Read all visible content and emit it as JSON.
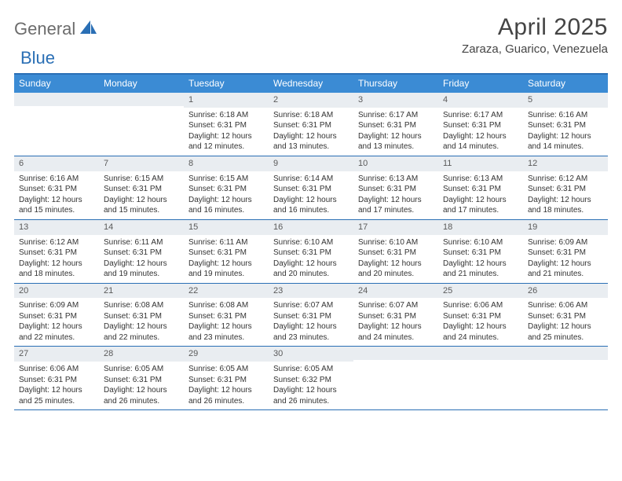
{
  "logo": {
    "part1": "General",
    "part2": "Blue"
  },
  "title": "April 2025",
  "location": "Zaraza, Guarico, Venezuela",
  "colors": {
    "header_bar": "#3b8bd4",
    "top_rule": "#2a6fb5",
    "row_rule": "#2a6fb5",
    "daynum_bg": "#e9edf1",
    "text": "#333333",
    "logo_gray": "#6c6c6c",
    "logo_blue": "#2a6fb5",
    "background": "#ffffff"
  },
  "day_names": [
    "Sunday",
    "Monday",
    "Tuesday",
    "Wednesday",
    "Thursday",
    "Friday",
    "Saturday"
  ],
  "weeks": [
    [
      {
        "num": "",
        "sunrise": "",
        "sunset": "",
        "daylight": ""
      },
      {
        "num": "",
        "sunrise": "",
        "sunset": "",
        "daylight": ""
      },
      {
        "num": "1",
        "sunrise": "Sunrise: 6:18 AM",
        "sunset": "Sunset: 6:31 PM",
        "daylight": "Daylight: 12 hours and 12 minutes."
      },
      {
        "num": "2",
        "sunrise": "Sunrise: 6:18 AM",
        "sunset": "Sunset: 6:31 PM",
        "daylight": "Daylight: 12 hours and 13 minutes."
      },
      {
        "num": "3",
        "sunrise": "Sunrise: 6:17 AM",
        "sunset": "Sunset: 6:31 PM",
        "daylight": "Daylight: 12 hours and 13 minutes."
      },
      {
        "num": "4",
        "sunrise": "Sunrise: 6:17 AM",
        "sunset": "Sunset: 6:31 PM",
        "daylight": "Daylight: 12 hours and 14 minutes."
      },
      {
        "num": "5",
        "sunrise": "Sunrise: 6:16 AM",
        "sunset": "Sunset: 6:31 PM",
        "daylight": "Daylight: 12 hours and 14 minutes."
      }
    ],
    [
      {
        "num": "6",
        "sunrise": "Sunrise: 6:16 AM",
        "sunset": "Sunset: 6:31 PM",
        "daylight": "Daylight: 12 hours and 15 minutes."
      },
      {
        "num": "7",
        "sunrise": "Sunrise: 6:15 AM",
        "sunset": "Sunset: 6:31 PM",
        "daylight": "Daylight: 12 hours and 15 minutes."
      },
      {
        "num": "8",
        "sunrise": "Sunrise: 6:15 AM",
        "sunset": "Sunset: 6:31 PM",
        "daylight": "Daylight: 12 hours and 16 minutes."
      },
      {
        "num": "9",
        "sunrise": "Sunrise: 6:14 AM",
        "sunset": "Sunset: 6:31 PM",
        "daylight": "Daylight: 12 hours and 16 minutes."
      },
      {
        "num": "10",
        "sunrise": "Sunrise: 6:13 AM",
        "sunset": "Sunset: 6:31 PM",
        "daylight": "Daylight: 12 hours and 17 minutes."
      },
      {
        "num": "11",
        "sunrise": "Sunrise: 6:13 AM",
        "sunset": "Sunset: 6:31 PM",
        "daylight": "Daylight: 12 hours and 17 minutes."
      },
      {
        "num": "12",
        "sunrise": "Sunrise: 6:12 AM",
        "sunset": "Sunset: 6:31 PM",
        "daylight": "Daylight: 12 hours and 18 minutes."
      }
    ],
    [
      {
        "num": "13",
        "sunrise": "Sunrise: 6:12 AM",
        "sunset": "Sunset: 6:31 PM",
        "daylight": "Daylight: 12 hours and 18 minutes."
      },
      {
        "num": "14",
        "sunrise": "Sunrise: 6:11 AM",
        "sunset": "Sunset: 6:31 PM",
        "daylight": "Daylight: 12 hours and 19 minutes."
      },
      {
        "num": "15",
        "sunrise": "Sunrise: 6:11 AM",
        "sunset": "Sunset: 6:31 PM",
        "daylight": "Daylight: 12 hours and 19 minutes."
      },
      {
        "num": "16",
        "sunrise": "Sunrise: 6:10 AM",
        "sunset": "Sunset: 6:31 PM",
        "daylight": "Daylight: 12 hours and 20 minutes."
      },
      {
        "num": "17",
        "sunrise": "Sunrise: 6:10 AM",
        "sunset": "Sunset: 6:31 PM",
        "daylight": "Daylight: 12 hours and 20 minutes."
      },
      {
        "num": "18",
        "sunrise": "Sunrise: 6:10 AM",
        "sunset": "Sunset: 6:31 PM",
        "daylight": "Daylight: 12 hours and 21 minutes."
      },
      {
        "num": "19",
        "sunrise": "Sunrise: 6:09 AM",
        "sunset": "Sunset: 6:31 PM",
        "daylight": "Daylight: 12 hours and 21 minutes."
      }
    ],
    [
      {
        "num": "20",
        "sunrise": "Sunrise: 6:09 AM",
        "sunset": "Sunset: 6:31 PM",
        "daylight": "Daylight: 12 hours and 22 minutes."
      },
      {
        "num": "21",
        "sunrise": "Sunrise: 6:08 AM",
        "sunset": "Sunset: 6:31 PM",
        "daylight": "Daylight: 12 hours and 22 minutes."
      },
      {
        "num": "22",
        "sunrise": "Sunrise: 6:08 AM",
        "sunset": "Sunset: 6:31 PM",
        "daylight": "Daylight: 12 hours and 23 minutes."
      },
      {
        "num": "23",
        "sunrise": "Sunrise: 6:07 AM",
        "sunset": "Sunset: 6:31 PM",
        "daylight": "Daylight: 12 hours and 23 minutes."
      },
      {
        "num": "24",
        "sunrise": "Sunrise: 6:07 AM",
        "sunset": "Sunset: 6:31 PM",
        "daylight": "Daylight: 12 hours and 24 minutes."
      },
      {
        "num": "25",
        "sunrise": "Sunrise: 6:06 AM",
        "sunset": "Sunset: 6:31 PM",
        "daylight": "Daylight: 12 hours and 24 minutes."
      },
      {
        "num": "26",
        "sunrise": "Sunrise: 6:06 AM",
        "sunset": "Sunset: 6:31 PM",
        "daylight": "Daylight: 12 hours and 25 minutes."
      }
    ],
    [
      {
        "num": "27",
        "sunrise": "Sunrise: 6:06 AM",
        "sunset": "Sunset: 6:31 PM",
        "daylight": "Daylight: 12 hours and 25 minutes."
      },
      {
        "num": "28",
        "sunrise": "Sunrise: 6:05 AM",
        "sunset": "Sunset: 6:31 PM",
        "daylight": "Daylight: 12 hours and 26 minutes."
      },
      {
        "num": "29",
        "sunrise": "Sunrise: 6:05 AM",
        "sunset": "Sunset: 6:31 PM",
        "daylight": "Daylight: 12 hours and 26 minutes."
      },
      {
        "num": "30",
        "sunrise": "Sunrise: 6:05 AM",
        "sunset": "Sunset: 6:32 PM",
        "daylight": "Daylight: 12 hours and 26 minutes."
      },
      {
        "num": "",
        "sunrise": "",
        "sunset": "",
        "daylight": ""
      },
      {
        "num": "",
        "sunrise": "",
        "sunset": "",
        "daylight": ""
      },
      {
        "num": "",
        "sunrise": "",
        "sunset": "",
        "daylight": ""
      }
    ]
  ]
}
